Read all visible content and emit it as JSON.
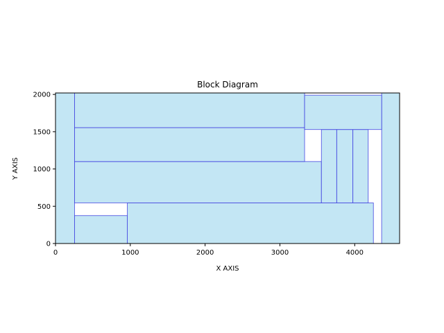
{
  "chart_data": {
    "type": "block-diagram",
    "title": "Block Diagram",
    "xlabel": "X AXIS",
    "ylabel": "Y AXIS",
    "xlim": [
      0,
      4600
    ],
    "ylim": [
      0,
      2020
    ],
    "xticks": [
      0,
      1000,
      2000,
      3000,
      4000
    ],
    "yticks": [
      0,
      500,
      1000,
      1500,
      2000
    ],
    "fill_color": "#c3e6f4",
    "edge_color": "#3b3bdf",
    "grid": false,
    "blocks": [
      {
        "x": 0,
        "y": 0,
        "w": 255,
        "h": 2020
      },
      {
        "x": 4360,
        "y": 0,
        "w": 240,
        "h": 2020
      },
      {
        "x": 255,
        "y": 0,
        "w": 705,
        "h": 375
      },
      {
        "x": 960,
        "y": 0,
        "w": 3290,
        "h": 545
      },
      {
        "x": 255,
        "y": 545,
        "w": 3300,
        "h": 555
      },
      {
        "x": 3555,
        "y": 545,
        "w": 205,
        "h": 985
      },
      {
        "x": 3760,
        "y": 545,
        "w": 215,
        "h": 985
      },
      {
        "x": 3975,
        "y": 545,
        "w": 205,
        "h": 985
      },
      {
        "x": 255,
        "y": 1100,
        "w": 3075,
        "h": 455
      },
      {
        "x": 255,
        "y": 1555,
        "w": 3075,
        "h": 465
      },
      {
        "x": 3330,
        "y": 1530,
        "w": 1030,
        "h": 460
      }
    ]
  }
}
